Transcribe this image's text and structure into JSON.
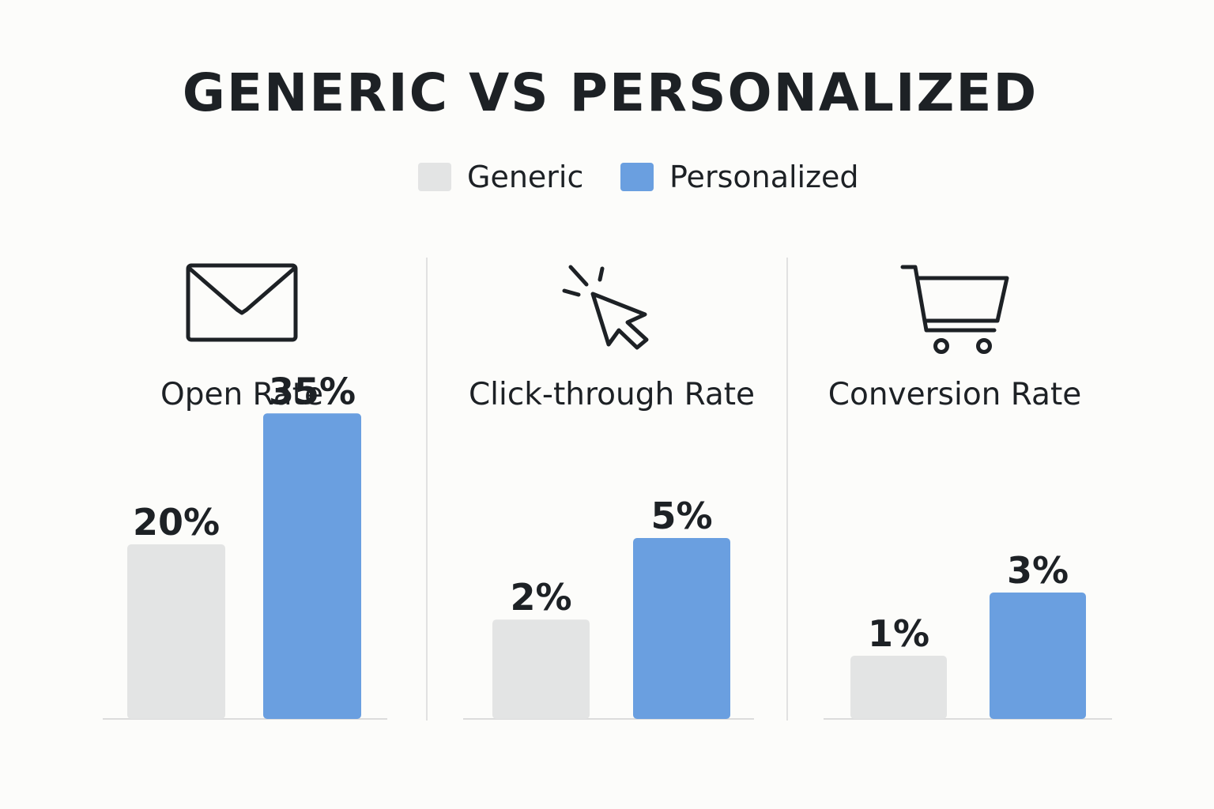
{
  "title": "GENERIC VS PERSONALIZED",
  "legend": [
    {
      "label": "Generic",
      "color": "#e3e4e4"
    },
    {
      "label": "Personalized",
      "color": "#6a9fe0"
    }
  ],
  "panels": [
    {
      "label": "Open Rate",
      "icon": "envelope-icon"
    },
    {
      "label": "Click-through Rate",
      "icon": "cursor-click-icon"
    },
    {
      "label": "Conversion Rate",
      "icon": "shopping-cart-icon"
    }
  ],
  "chart_data": [
    {
      "type": "bar",
      "title": "Open Rate",
      "categories": [
        "Generic",
        "Personalized"
      ],
      "values": [
        20,
        35
      ],
      "labels": [
        "20%",
        "35%"
      ],
      "unit": "%",
      "grid": false
    },
    {
      "type": "bar",
      "title": "Click-through Rate",
      "categories": [
        "Generic",
        "Personalized"
      ],
      "values": [
        2,
        5
      ],
      "labels": [
        "2%",
        "5%"
      ],
      "unit": "%",
      "grid": false
    },
    {
      "type": "bar",
      "title": "Conversion Rate",
      "categories": [
        "Generic",
        "Personalized"
      ],
      "values": [
        1,
        3
      ],
      "labels": [
        "1%",
        "3%"
      ],
      "unit": "%",
      "grid": false
    }
  ]
}
